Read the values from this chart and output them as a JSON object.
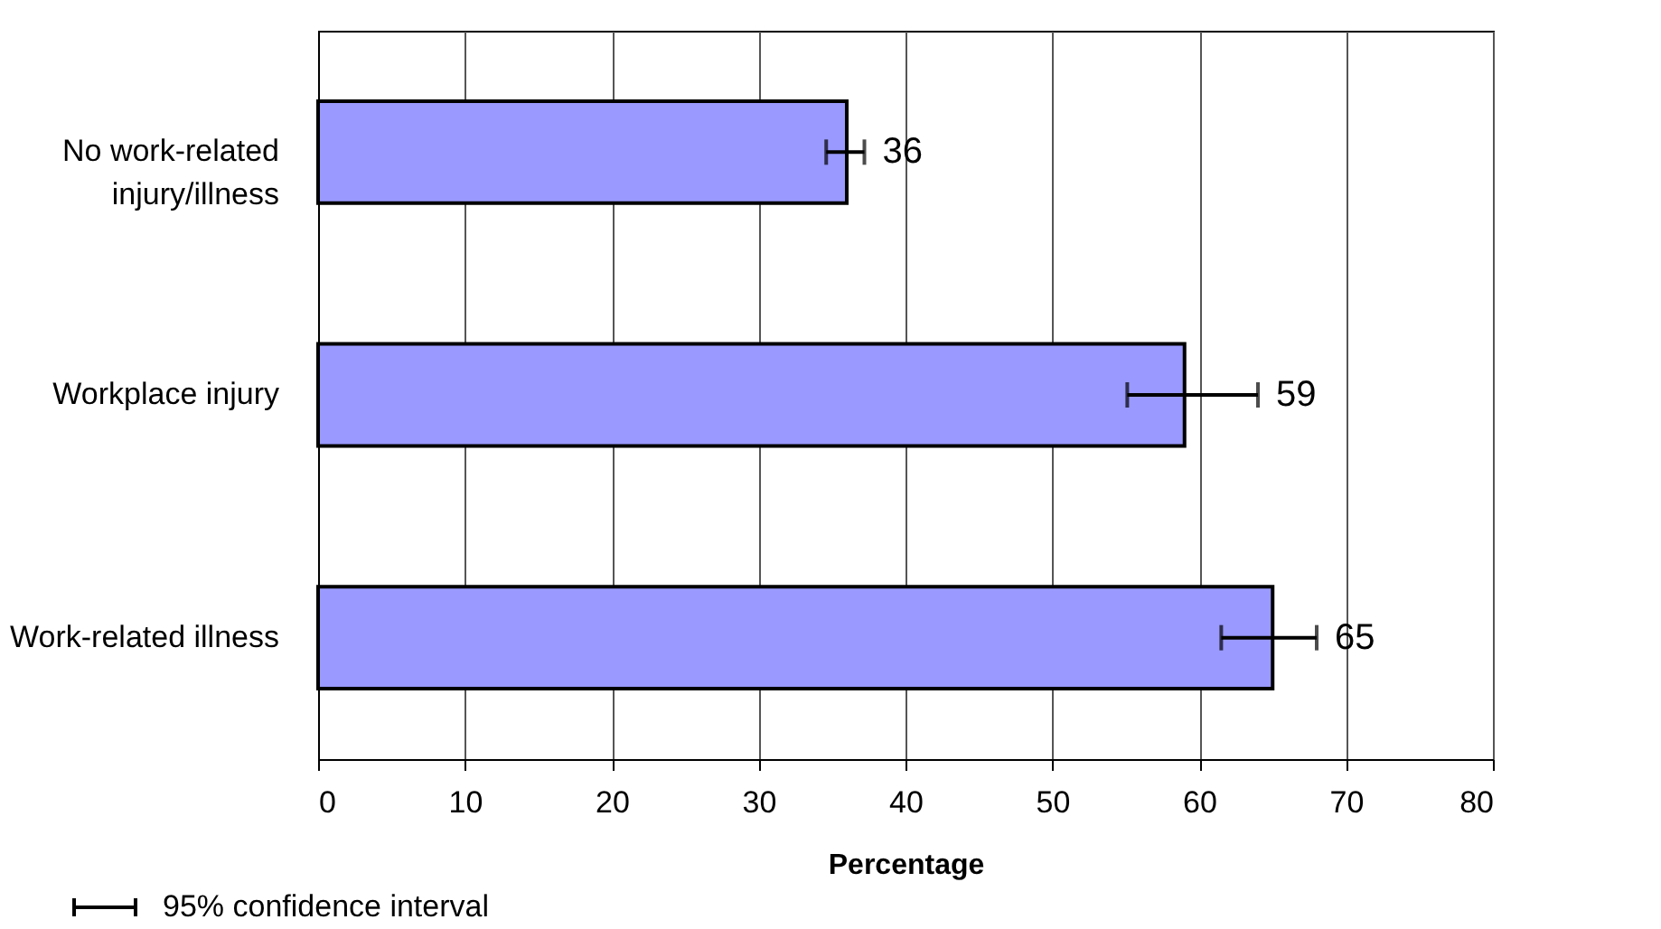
{
  "chart_data": {
    "type": "bar",
    "orientation": "horizontal",
    "xlabel": "Percentage",
    "categories": [
      "No work-related injury/illness",
      "Workplace injury",
      "Work-related illness"
    ],
    "values": [
      36,
      59,
      65
    ],
    "color": "#9999ff",
    "errors": [
      [
        34.6,
        37.2
      ],
      [
        55.1,
        64.0
      ],
      [
        61.5,
        68.0
      ]
    ],
    "xlim": [
      0,
      80
    ],
    "xticks": [
      0,
      10,
      20,
      30,
      40,
      50,
      60,
      70,
      80
    ],
    "grid": "x",
    "data_labels": true,
    "annotations": [
      "95% confidence interval"
    ]
  }
}
